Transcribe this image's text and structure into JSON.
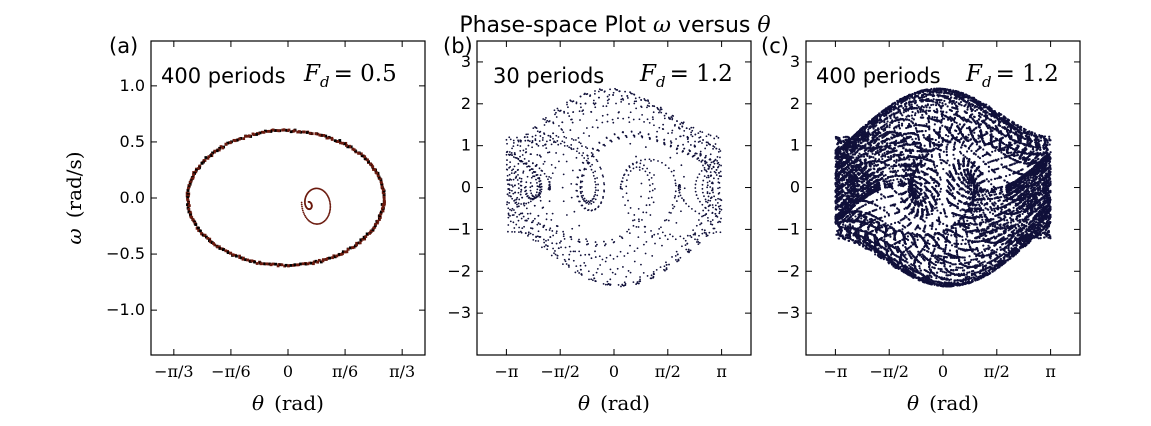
{
  "title_text": "Phase-space Plot",
  "title_omega": "ω",
  "title_versus": "versus",
  "title_theta": "θ",
  "colors": {
    "points_a": "#6b1a0e",
    "points_bc": "#10103a",
    "axes": "#000000"
  },
  "chart_data": [
    {
      "type": "scatter",
      "panel_label": "(a)",
      "annotation_periods": "400 periods",
      "annotation_F": "F",
      "annotation_sub": "d",
      "annotation_value": "= 0.5",
      "xlabel_symbol": "θ",
      "xlabel_unit": "(rad)",
      "ylabel_symbol": "ω",
      "ylabel_unit": "(rad/s)",
      "xlim": [
        -1.2566,
        1.2566
      ],
      "ylim": [
        -1.4,
        1.4
      ],
      "xticks": [
        -1.0472,
        -0.5236,
        0,
        0.5236,
        1.0472
      ],
      "xtick_labels": [
        "−π/3",
        "−π/6",
        "0",
        "π/6",
        "π/3"
      ],
      "yticks": [
        -1.0,
        -0.5,
        0.0,
        0.5,
        1.0
      ],
      "ytick_labels": [
        "−1.0",
        "−0.5",
        "0.0",
        "0.5",
        "1.0"
      ],
      "limit_cycle": {
        "center_theta": -0.02,
        "amplitude_theta": 0.9,
        "amplitude_omega": 0.6
      },
      "transient": {
        "start_theta": 0.18,
        "start_omega": -0.04,
        "end_theta": 0.26,
        "end_omega": 0.1
      }
    },
    {
      "type": "scatter",
      "panel_label": "(b)",
      "annotation_periods": "30 periods",
      "annotation_F": "F",
      "annotation_sub": "d",
      "annotation_value": "= 1.2",
      "xlabel_symbol": "θ",
      "xlabel_unit": "(rad)",
      "xlim": [
        -4.0,
        4.0
      ],
      "ylim": [
        -4.0,
        3.5
      ],
      "xticks": [
        -3.1416,
        -1.5708,
        0,
        1.5708,
        3.1416
      ],
      "xtick_labels": [
        "−π",
        "−π/2",
        "0",
        "π/2",
        "π"
      ],
      "yticks": [
        -3,
        -2,
        -1,
        0,
        1,
        2,
        3
      ],
      "ytick_labels": [
        "−3",
        "−2",
        "−1",
        "0",
        "1",
        "2",
        "3"
      ],
      "trajectory": {
        "theta_range": [
          -3.1416,
          3.1416
        ],
        "omega_range": [
          -2.4,
          2.4
        ],
        "density": "sparse"
      }
    },
    {
      "type": "scatter",
      "panel_label": "(c)",
      "annotation_periods": "400 periods",
      "annotation_F": "F",
      "annotation_sub": "d",
      "annotation_value": "= 1.2",
      "xlabel_symbol": "θ",
      "xlabel_unit": "(rad)",
      "xlim": [
        -4.0,
        4.0
      ],
      "ylim": [
        -4.0,
        3.5
      ],
      "xticks": [
        -3.1416,
        -1.5708,
        0,
        1.5708,
        3.1416
      ],
      "xtick_labels": [
        "−π",
        "−π/2",
        "0",
        "π/2",
        "π"
      ],
      "yticks": [
        -3,
        -2,
        -1,
        0,
        1,
        2,
        3
      ],
      "ytick_labels": [
        "−3",
        "−2",
        "−1",
        "0",
        "1",
        "2",
        "3"
      ],
      "trajectory": {
        "theta_range": [
          -3.1416,
          3.1416
        ],
        "omega_range": [
          -2.4,
          2.4
        ],
        "density": "dense"
      }
    }
  ]
}
